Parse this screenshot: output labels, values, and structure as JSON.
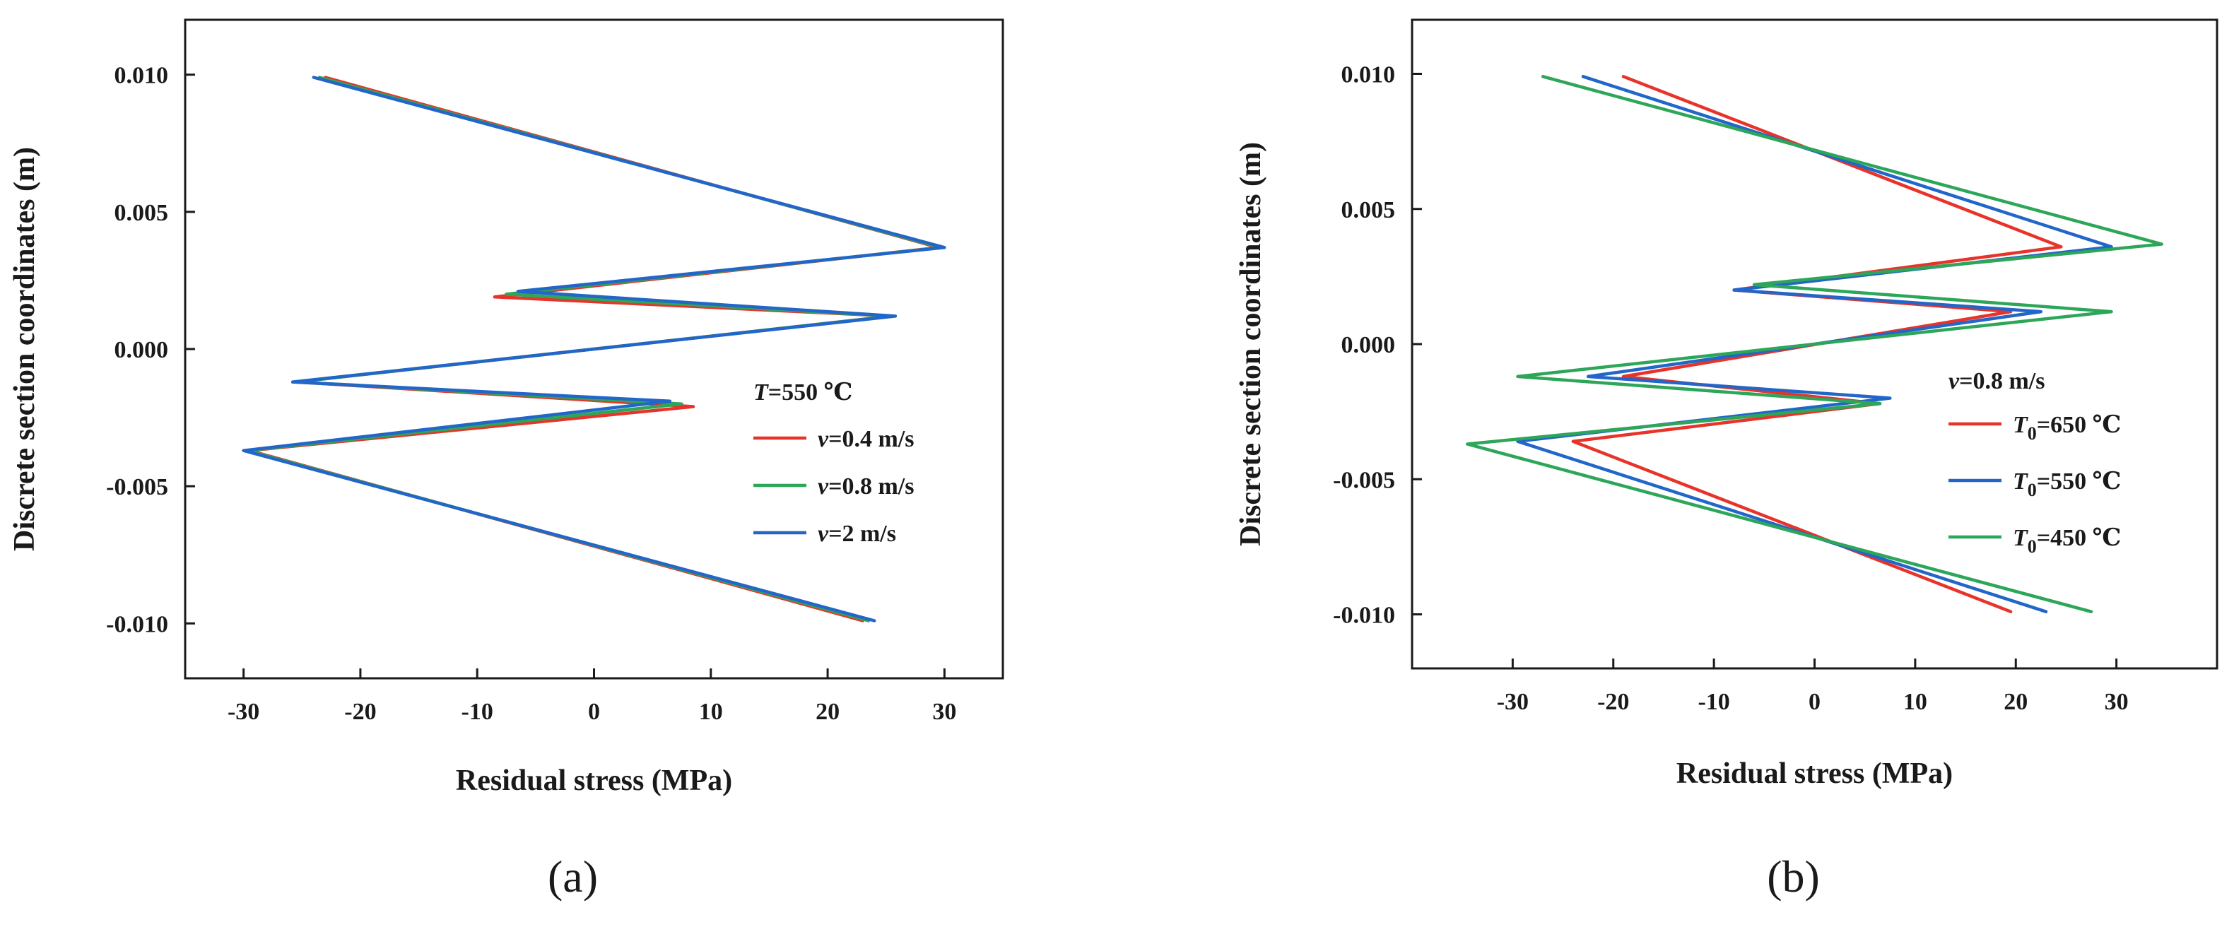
{
  "chart_data": [
    {
      "type": "line",
      "panel_label": "(a)",
      "xlabel": "Residual stress (MPa)",
      "ylabel": "Discrete section coordinates (m)",
      "xlim": [
        -35,
        35
      ],
      "ylim": [
        -0.012,
        0.012
      ],
      "xticks": [
        -30,
        -20,
        -10,
        0,
        10,
        20,
        30
      ],
      "xtick_labels": [
        "-30",
        "-20",
        "-10",
        "0",
        "10",
        "20",
        "30"
      ],
      "yticks": [
        0.01,
        0.005,
        0.0,
        -0.005,
        -0.01
      ],
      "ytick_labels": [
        "0.010",
        "0.005",
        "0.000",
        "-0.005",
        "-0.010"
      ],
      "legend_title": {
        "main": "T",
        "rest": "=550 ℃"
      },
      "legend_position": "middle-right",
      "series": [
        {
          "name": "v=0.4 m/s",
          "label_var": "v",
          "label_rest": "=0.4 m/s",
          "color": "#e8332a",
          "x": [
            -23.0,
            29.5,
            -8.5,
            25.5,
            -25.5,
            8.5,
            -29.5,
            23.0
          ],
          "y": [
            0.0099,
            0.0037,
            0.0019,
            0.0012,
            -0.0012,
            -0.0021,
            -0.0037,
            -0.0099
          ]
        },
        {
          "name": "v=0.8 m/s",
          "label_var": "v",
          "label_rest": "=0.8 m/s",
          "color": "#2ea65a",
          "x": [
            -23.5,
            29.7,
            -7.5,
            25.5,
            -25.5,
            7.5,
            -29.7,
            23.5
          ],
          "y": [
            0.0099,
            0.0037,
            0.002,
            0.0012,
            -0.0012,
            -0.002,
            -0.0037,
            -0.0099
          ]
        },
        {
          "name": "v=2 m/s",
          "label_var": "v",
          "label_rest": "=2 m/s",
          "color": "#2166c8",
          "x": [
            -24.0,
            30.0,
            -6.5,
            25.8,
            -25.8,
            6.5,
            -30.0,
            24.0
          ],
          "y": [
            0.0099,
            0.0037,
            0.0021,
            0.0012,
            -0.0012,
            -0.0019,
            -0.0037,
            -0.0099
          ]
        }
      ]
    },
    {
      "type": "line",
      "panel_label": "(b)",
      "xlabel": "Residual stress (MPa)",
      "ylabel": "Discrete section coordinates (m)",
      "xlim": [
        -40,
        40
      ],
      "ylim": [
        -0.012,
        0.012
      ],
      "xticks": [
        -30,
        -20,
        -10,
        0,
        10,
        20,
        30
      ],
      "xtick_labels": [
        "-30",
        "-20",
        "-10",
        "0",
        "10",
        "20",
        "30"
      ],
      "yticks": [
        0.01,
        0.005,
        0.0,
        -0.005,
        -0.01
      ],
      "ytick_labels": [
        "0.010",
        "0.005",
        "0.000",
        "-0.005",
        "-0.010"
      ],
      "legend_title": {
        "main": "v",
        "rest": "=0.8 m/s"
      },
      "legend_position": "middle-right",
      "series": [
        {
          "name": "T0=650 ℃",
          "label_var": "T",
          "label_sub": "0",
          "label_rest": "=650 ℃",
          "color": "#e8332a",
          "x": [
            -19.0,
            24.5,
            -8.0,
            19.5,
            -19.0,
            6.5,
            -24.0,
            19.5
          ],
          "y": [
            0.0099,
            0.0036,
            0.002,
            0.0012,
            -0.0012,
            -0.0022,
            -0.0036,
            -0.0099
          ]
        },
        {
          "name": "T0=550 ℃",
          "label_var": "T",
          "label_sub": "0",
          "label_rest": "=550 ℃",
          "color": "#2166c8",
          "x": [
            -23.0,
            29.5,
            -8.0,
            22.5,
            -22.5,
            7.5,
            -29.5,
            23.0
          ],
          "y": [
            0.0099,
            0.0036,
            0.002,
            0.0012,
            -0.0012,
            -0.002,
            -0.0036,
            -0.0099
          ]
        },
        {
          "name": "T0=450 ℃",
          "label_var": "T",
          "label_sub": "0",
          "label_rest": "=450 ℃",
          "color": "#2ea65a",
          "x": [
            -27.0,
            34.5,
            -6.0,
            29.5,
            -29.5,
            6.5,
            -34.5,
            27.5
          ],
          "y": [
            0.0099,
            0.0037,
            0.0022,
            0.0012,
            -0.0012,
            -0.0022,
            -0.0037,
            -0.0099
          ]
        }
      ]
    }
  ]
}
